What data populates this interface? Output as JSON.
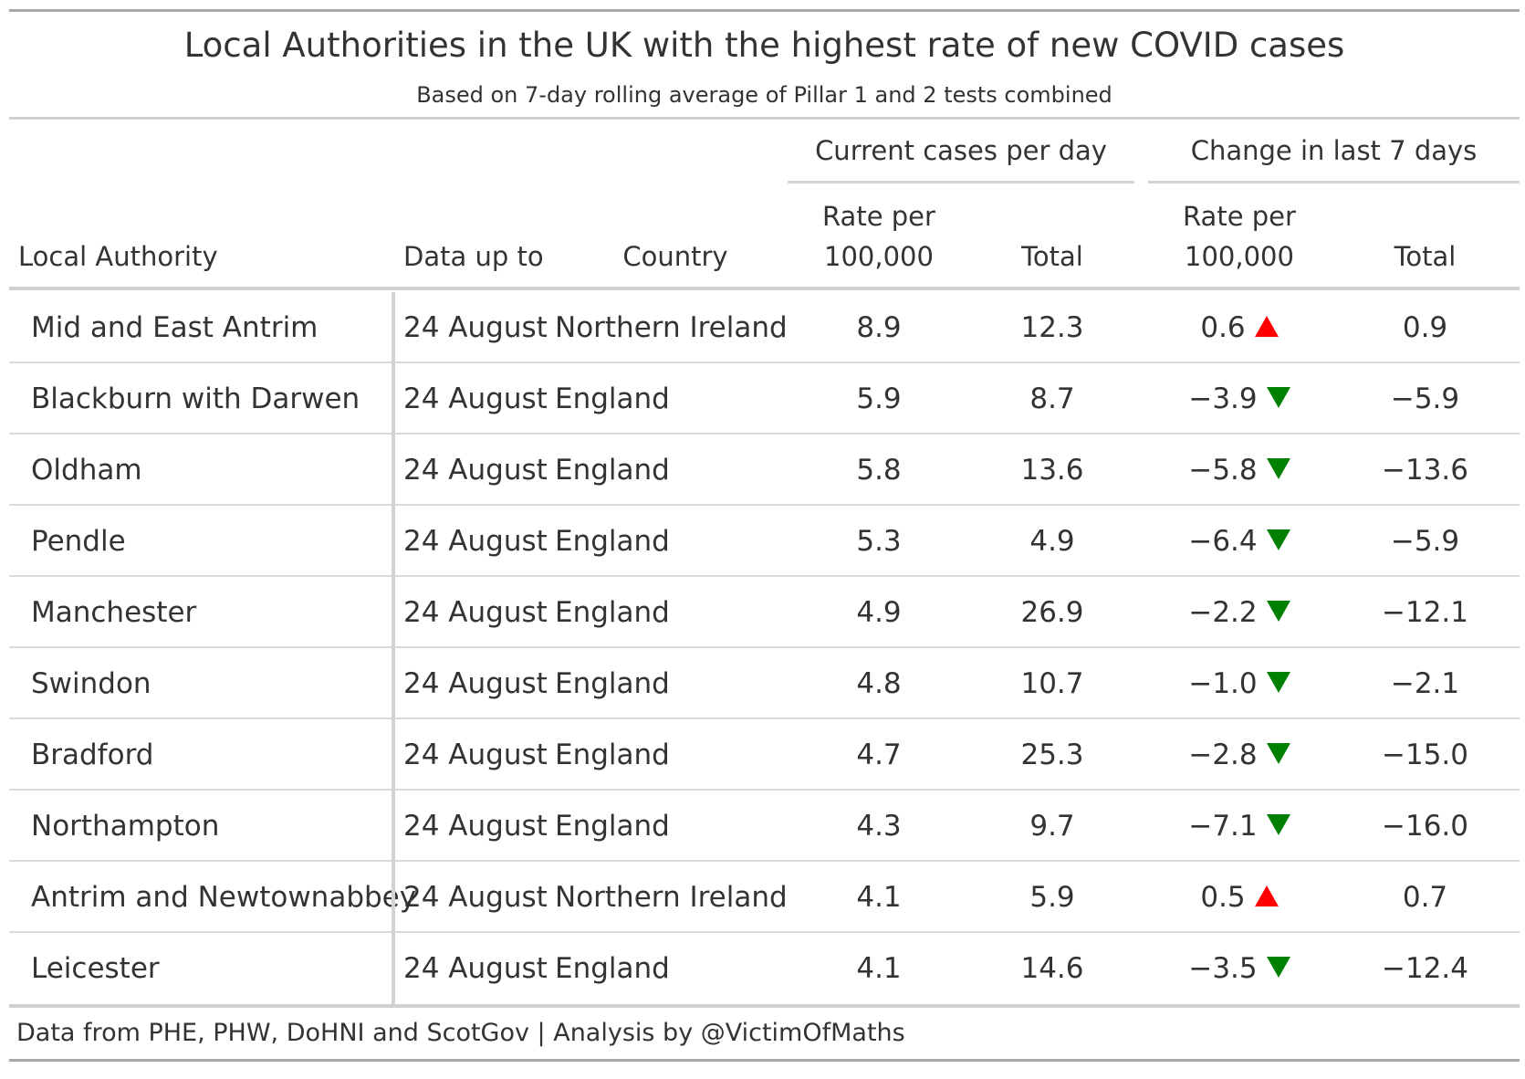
{
  "chart_data": {
    "type": "table",
    "title": "Local Authorities in the UK with the highest rate of new COVID cases",
    "subtitle": "Based on 7-day rolling average of Pillar 1 and 2 tests combined",
    "spanners": {
      "current": "Current cases per day",
      "change": "Change in last 7 days"
    },
    "columns": {
      "authority": "Local Authority",
      "date": "Data up to",
      "country": "Country",
      "rate_line1": "Rate per",
      "rate_line2": "100,000",
      "total": "Total"
    },
    "rows": [
      {
        "authority": "Mid and East Antrim",
        "date": "24 August",
        "country": "Northern Ireland",
        "rate": "8.9",
        "total": "12.3",
        "change_rate": "0.6",
        "change_total": "0.9",
        "trend": "up"
      },
      {
        "authority": "Blackburn with Darwen",
        "date": "24 August",
        "country": "England",
        "rate": "5.9",
        "total": "8.7",
        "change_rate": "−3.9",
        "change_total": "−5.9",
        "trend": "down"
      },
      {
        "authority": "Oldham",
        "date": "24 August",
        "country": "England",
        "rate": "5.8",
        "total": "13.6",
        "change_rate": "−5.8",
        "change_total": "−13.6",
        "trend": "down"
      },
      {
        "authority": "Pendle",
        "date": "24 August",
        "country": "England",
        "rate": "5.3",
        "total": "4.9",
        "change_rate": "−6.4",
        "change_total": "−5.9",
        "trend": "down"
      },
      {
        "authority": "Manchester",
        "date": "24 August",
        "country": "England",
        "rate": "4.9",
        "total": "26.9",
        "change_rate": "−2.2",
        "change_total": "−12.1",
        "trend": "down"
      },
      {
        "authority": "Swindon",
        "date": "24 August",
        "country": "England",
        "rate": "4.8",
        "total": "10.7",
        "change_rate": "−1.0",
        "change_total": "−2.1",
        "trend": "down"
      },
      {
        "authority": "Bradford",
        "date": "24 August",
        "country": "England",
        "rate": "4.7",
        "total": "25.3",
        "change_rate": "−2.8",
        "change_total": "−15.0",
        "trend": "down"
      },
      {
        "authority": "Northampton",
        "date": "24 August",
        "country": "England",
        "rate": "4.3",
        "total": "9.7",
        "change_rate": "−7.1",
        "change_total": "−16.0",
        "trend": "down"
      },
      {
        "authority": "Antrim and Newtownabbey",
        "date": "24 August",
        "country": "Northern Ireland",
        "rate": "4.1",
        "total": "5.9",
        "change_rate": "0.5",
        "change_total": "0.7",
        "trend": "up"
      },
      {
        "authority": "Leicester",
        "date": "24 August",
        "country": "England",
        "rate": "4.1",
        "total": "14.6",
        "change_rate": "−3.5",
        "change_total": "−12.4",
        "trend": "down"
      }
    ],
    "source": "Data from PHE, PHW, DoHNI and ScotGov | Analysis by @VictimOfMaths",
    "colors": {
      "up": "#ff0000",
      "down": "#008000",
      "text": "#333333"
    }
  }
}
